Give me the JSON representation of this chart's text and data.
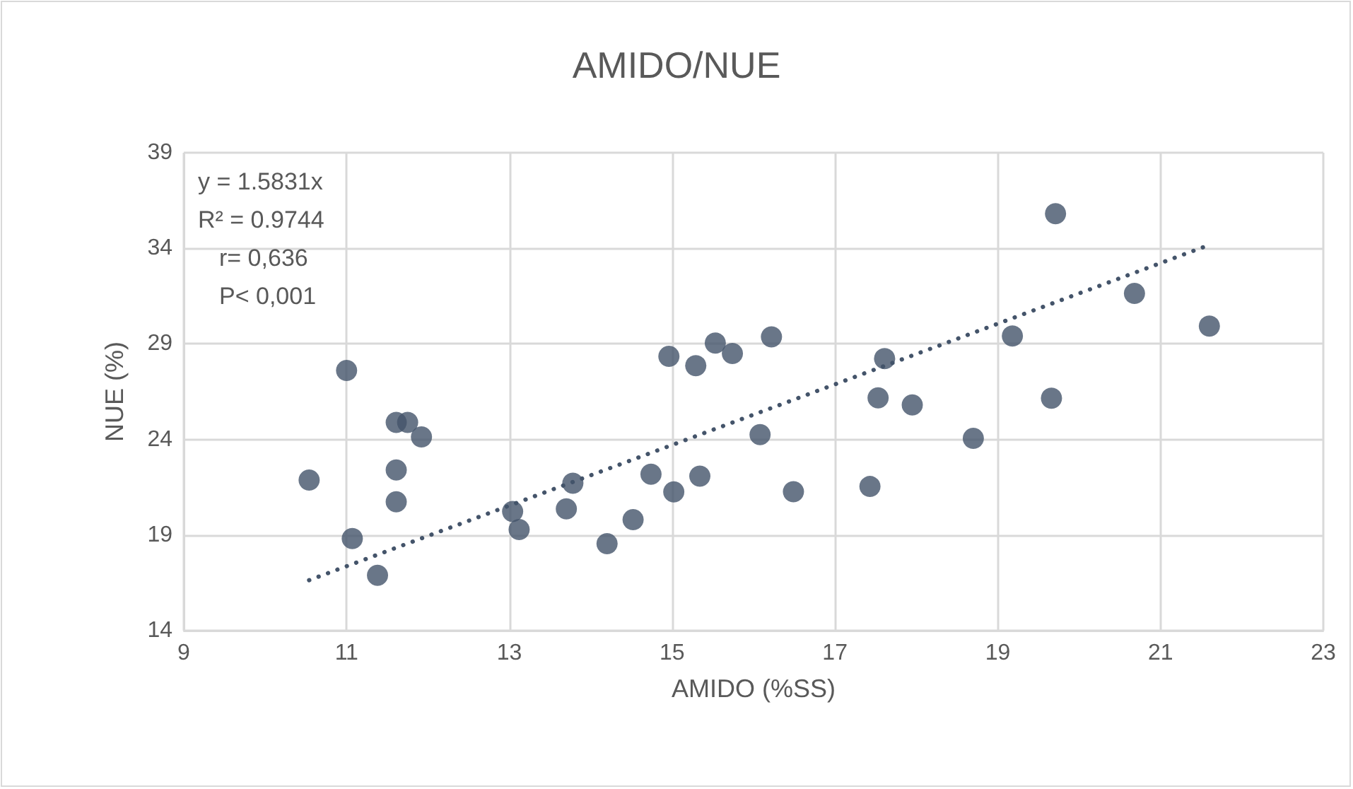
{
  "chart_data": {
    "type": "scatter",
    "title": "AMIDO/NUE",
    "xlabel": "AMIDO (%SS)",
    "ylabel": "NUE (%)",
    "annotations": [
      "y = 1.5831x",
      "R² = 0.9744",
      "r= 0,636",
      "P< 0,001"
    ],
    "xlim": [
      9,
      23
    ],
    "xticks": [
      9,
      11,
      13,
      15,
      17,
      19,
      21,
      23
    ],
    "ylim": [
      14,
      39
    ],
    "yticks": [
      14,
      19,
      24,
      29,
      34,
      39
    ],
    "grid": true,
    "marker": "circle",
    "series": [
      {
        "color": "#44546a",
        "x": [
          10.54,
          11.0,
          11.07,
          11.38,
          11.61,
          11.75,
          11.92,
          11.61,
          11.61,
          13.04,
          13.12,
          13.78,
          13.7,
          14.2,
          14.52,
          14.74,
          15.02,
          15.34,
          14.96,
          15.29,
          15.53,
          15.74,
          16.08,
          16.22,
          16.49,
          17.43,
          17.53,
          17.61,
          17.95,
          18.7,
          19.18,
          19.66,
          19.71,
          20.68,
          21.6
        ],
        "values": [
          21.88,
          27.61,
          18.82,
          16.89,
          24.89,
          24.89,
          24.13,
          22.4,
          20.74,
          20.23,
          19.29,
          21.71,
          20.37,
          18.55,
          19.81,
          22.18,
          21.26,
          22.08,
          28.35,
          27.86,
          29.04,
          28.5,
          24.25,
          29.37,
          21.27,
          21.54,
          26.18,
          28.23,
          25.81,
          24.06,
          29.41,
          26.16,
          35.81,
          31.64,
          29.93
        ]
      },
      {
        "type": "line",
        "color": "#44546a",
        "line_style": "dotted",
        "marker": "none",
        "x": [
          10.54,
          21.57
        ],
        "values": [
          16.64,
          34.13
        ]
      }
    ]
  }
}
